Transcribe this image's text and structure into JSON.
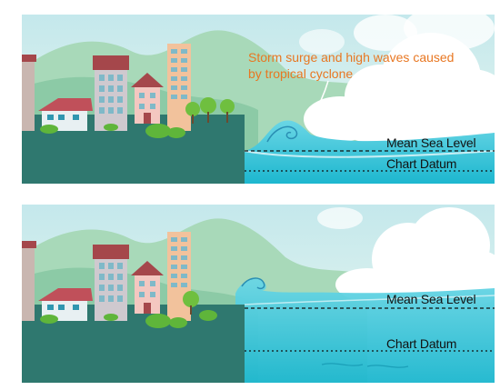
{
  "panels": {
    "top": {
      "annotation": {
        "line1": "Storm surge and high waves caused",
        "line2": "by tropical cyclone"
      },
      "mean_sea_level": "Mean Sea Level",
      "chart_datum": "Chart Datum"
    },
    "bottom": {
      "mean_sea_level": "Mean Sea Level",
      "chart_datum": "Chart Datum"
    }
  },
  "colors": {
    "sky_top": "#c6e9ec",
    "sky_bottom": "#e8f6ee",
    "hills": "#a3d6b6",
    "land": "#2f786f",
    "sea_top": "#62d3e3",
    "sea_bottom": "#1fb9d0",
    "annotation": "#e87722",
    "roof_red": "#b04a4e",
    "tree": "#6fbf3f"
  }
}
